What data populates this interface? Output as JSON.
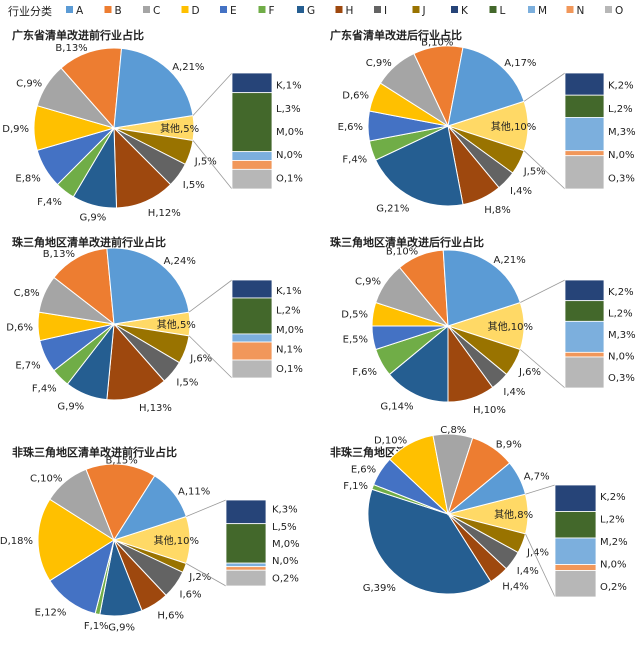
{
  "legend": {
    "title": "行业分类",
    "items": [
      {
        "label": "A",
        "color": "#5b9bd5"
      },
      {
        "label": "B",
        "color": "#ed7d31"
      },
      {
        "label": "C",
        "color": "#a5a5a5"
      },
      {
        "label": "D",
        "color": "#ffc000"
      },
      {
        "label": "E",
        "color": "#4472c4"
      },
      {
        "label": "F",
        "color": "#70ad47"
      },
      {
        "label": "G",
        "color": "#255e91"
      },
      {
        "label": "H",
        "color": "#9e480e"
      },
      {
        "label": "I",
        "color": "#636363"
      },
      {
        "label": "J",
        "color": "#997300"
      },
      {
        "label": "K",
        "color": "#264478"
      },
      {
        "label": "L",
        "color": "#43682b"
      },
      {
        "label": "M",
        "color": "#7cafdd"
      },
      {
        "label": "N",
        "color": "#f1975a"
      },
      {
        "label": "O",
        "color": "#b7b7b7"
      }
    ]
  },
  "chart_data": [
    {
      "type": "pie",
      "title": "广东省清单改进前行业占比",
      "slices": [
        {
          "cat": "A",
          "value": 21,
          "label": "A,21%"
        },
        {
          "cat": "B",
          "value": 13,
          "label": "B,13%"
        },
        {
          "cat": "C",
          "value": 9,
          "label": "C,9%"
        },
        {
          "cat": "D",
          "value": 9,
          "label": "D,9%"
        },
        {
          "cat": "E",
          "value": 8,
          "label": "E,8%"
        },
        {
          "cat": "F",
          "value": 4,
          "label": "F,4%"
        },
        {
          "cat": "G",
          "value": 9,
          "label": "G,9%"
        },
        {
          "cat": "H",
          "value": 12,
          "label": "H,12%"
        },
        {
          "cat": "I",
          "value": 5,
          "label": "I,5%"
        },
        {
          "cat": "J",
          "value": 5,
          "label": "J,5%"
        }
      ],
      "other": {
        "value": 5,
        "label": "其他,5%"
      },
      "breakdown": [
        {
          "cat": "K",
          "value": 1,
          "label": "K,1%"
        },
        {
          "cat": "L",
          "value": 3,
          "label": "L,3%"
        },
        {
          "cat": "M",
          "value": 0,
          "label": "M,0%"
        },
        {
          "cat": "N",
          "value": 0,
          "label": "N,0%"
        },
        {
          "cat": "O",
          "value": 1,
          "label": "O,1%"
        }
      ]
    },
    {
      "type": "pie",
      "title": "广东省清单改进后行业占比",
      "slices": [
        {
          "cat": "A",
          "value": 17,
          "label": "A,17%"
        },
        {
          "cat": "B",
          "value": 10,
          "label": "B,10%"
        },
        {
          "cat": "C",
          "value": 9,
          "label": "C,9%"
        },
        {
          "cat": "D",
          "value": 6,
          "label": "D,6%"
        },
        {
          "cat": "E",
          "value": 6,
          "label": "E,6%"
        },
        {
          "cat": "F",
          "value": 4,
          "label": "F,4%"
        },
        {
          "cat": "G",
          "value": 21,
          "label": "G,21%"
        },
        {
          "cat": "H",
          "value": 8,
          "label": "H,8%"
        },
        {
          "cat": "I",
          "value": 4,
          "label": "I,4%"
        },
        {
          "cat": "J",
          "value": 5,
          "label": "J,5%"
        }
      ],
      "other": {
        "value": 10,
        "label": "其他,10%"
      },
      "breakdown": [
        {
          "cat": "K",
          "value": 2,
          "label": "K,2%"
        },
        {
          "cat": "L",
          "value": 2,
          "label": "L,2%"
        },
        {
          "cat": "M",
          "value": 3,
          "label": "M,3%"
        },
        {
          "cat": "N",
          "value": 0,
          "label": "N,0%"
        },
        {
          "cat": "O",
          "value": 3,
          "label": "O,3%"
        }
      ]
    },
    {
      "type": "pie",
      "title": "珠三角地区清单改进前行业占比",
      "slices": [
        {
          "cat": "A",
          "value": 24,
          "label": "A,24%"
        },
        {
          "cat": "B",
          "value": 13,
          "label": "B,13%"
        },
        {
          "cat": "C",
          "value": 8,
          "label": "C,8%"
        },
        {
          "cat": "D",
          "value": 6,
          "label": "D,6%"
        },
        {
          "cat": "E",
          "value": 7,
          "label": "E,7%"
        },
        {
          "cat": "F",
          "value": 4,
          "label": "F,4%"
        },
        {
          "cat": "G",
          "value": 9,
          "label": "G,9%"
        },
        {
          "cat": "H",
          "value": 13,
          "label": "H,13%"
        },
        {
          "cat": "I",
          "value": 5,
          "label": "I,5%"
        },
        {
          "cat": "J",
          "value": 6,
          "label": "J,6%"
        }
      ],
      "other": {
        "value": 5,
        "label": "其他,5%"
      },
      "breakdown": [
        {
          "cat": "K",
          "value": 1,
          "label": "K,1%"
        },
        {
          "cat": "L",
          "value": 2,
          "label": "L,2%"
        },
        {
          "cat": "M",
          "value": 0,
          "label": "M,0%"
        },
        {
          "cat": "N",
          "value": 1,
          "label": "N,1%"
        },
        {
          "cat": "O",
          "value": 1,
          "label": "O,1%"
        }
      ]
    },
    {
      "type": "pie",
      "title": "珠三角地区清单改进后行业占比",
      "slices": [
        {
          "cat": "A",
          "value": 21,
          "label": "A,21%"
        },
        {
          "cat": "B",
          "value": 10,
          "label": "B,10%"
        },
        {
          "cat": "C",
          "value": 9,
          "label": "C,9%"
        },
        {
          "cat": "D",
          "value": 5,
          "label": "D,5%"
        },
        {
          "cat": "E",
          "value": 5,
          "label": "E,5%"
        },
        {
          "cat": "F",
          "value": 6,
          "label": "F,6%"
        },
        {
          "cat": "G",
          "value": 14,
          "label": "G,14%"
        },
        {
          "cat": "H",
          "value": 10,
          "label": "H,10%"
        },
        {
          "cat": "I",
          "value": 4,
          "label": "I,4%"
        },
        {
          "cat": "J",
          "value": 6,
          "label": "J,6%"
        }
      ],
      "other": {
        "value": 10,
        "label": "其他,10%"
      },
      "breakdown": [
        {
          "cat": "K",
          "value": 2,
          "label": "K,2%"
        },
        {
          "cat": "L",
          "value": 2,
          "label": "L,2%"
        },
        {
          "cat": "M",
          "value": 3,
          "label": "M,3%"
        },
        {
          "cat": "N",
          "value": 0,
          "label": "N,0%"
        },
        {
          "cat": "O",
          "value": 3,
          "label": "O,3%"
        }
      ]
    },
    {
      "type": "pie",
      "title": "非珠三角地区清单改进前行业占比",
      "slices": [
        {
          "cat": "A",
          "value": 11,
          "label": "A,11%"
        },
        {
          "cat": "B",
          "value": 15,
          "label": "B,15%"
        },
        {
          "cat": "C",
          "value": 10,
          "label": "C,10%"
        },
        {
          "cat": "D",
          "value": 18,
          "label": "D,18%"
        },
        {
          "cat": "E",
          "value": 12,
          "label": "E,12%"
        },
        {
          "cat": "F",
          "value": 1,
          "label": "F,1%"
        },
        {
          "cat": "G",
          "value": 9,
          "label": "G,9%"
        },
        {
          "cat": "H",
          "value": 6,
          "label": "H,6%"
        },
        {
          "cat": "I",
          "value": 6,
          "label": "I,6%"
        },
        {
          "cat": "J",
          "value": 2,
          "label": "J,2%"
        }
      ],
      "other": {
        "value": 10,
        "label": "其他,10%"
      },
      "breakdown": [
        {
          "cat": "K",
          "value": 3,
          "label": "K,3%"
        },
        {
          "cat": "L",
          "value": 5,
          "label": "L,5%"
        },
        {
          "cat": "M",
          "value": 0,
          "label": "M,0%"
        },
        {
          "cat": "N",
          "value": 0,
          "label": "N,0%"
        },
        {
          "cat": "O",
          "value": 2,
          "label": "O,2%"
        }
      ]
    },
    {
      "type": "pie",
      "title": "非珠三角地区清单改进后行业占比",
      "slices": [
        {
          "cat": "A",
          "value": 7,
          "label": "A,7%"
        },
        {
          "cat": "B",
          "value": 9,
          "label": "B,9%"
        },
        {
          "cat": "C",
          "value": 8,
          "label": "C,8%"
        },
        {
          "cat": "D",
          "value": 10,
          "label": "D,10%"
        },
        {
          "cat": "E",
          "value": 6,
          "label": "E,6%"
        },
        {
          "cat": "F",
          "value": 1,
          "label": "F,1%"
        },
        {
          "cat": "G",
          "value": 39,
          "label": "G,39%"
        },
        {
          "cat": "H",
          "value": 4,
          "label": "H,4%"
        },
        {
          "cat": "I",
          "value": 4,
          "label": "I,4%"
        },
        {
          "cat": "J",
          "value": 4,
          "label": "J,4%"
        }
      ],
      "other": {
        "value": 8,
        "label": "其他,8%"
      },
      "breakdown": [
        {
          "cat": "K",
          "value": 2,
          "label": "K,2%"
        },
        {
          "cat": "L",
          "value": 2,
          "label": "L,2%"
        },
        {
          "cat": "M",
          "value": 2,
          "label": "M,2%"
        },
        {
          "cat": "N",
          "value": 0,
          "label": "N,0%"
        },
        {
          "cat": "O",
          "value": 2,
          "label": "O,2%"
        }
      ]
    }
  ]
}
